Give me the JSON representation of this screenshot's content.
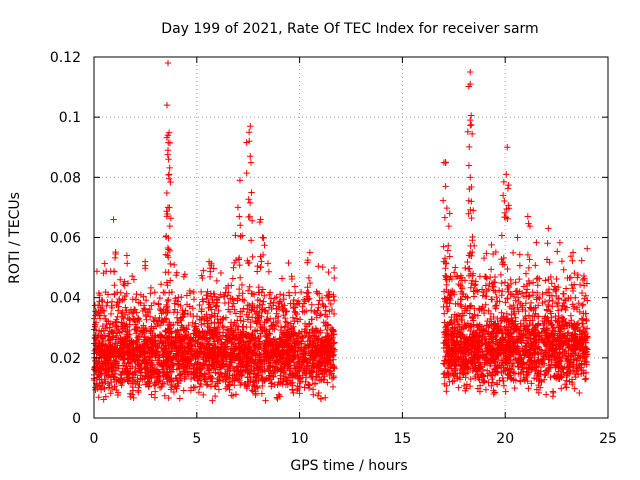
{
  "chart_data": {
    "type": "scatter",
    "title": "Day 199 of 2021, Rate Of TEC Index for receiver sarm",
    "xlabel": "GPS time / hours",
    "ylabel": "ROTI / TECUs",
    "xlim": [
      0,
      25
    ],
    "ylim": [
      0,
      0.12
    ],
    "xticks": [
      0,
      5,
      10,
      15,
      20,
      25
    ],
    "yticks": [
      0,
      0.02,
      0.04,
      0.06,
      0.08,
      0.1,
      0.12
    ],
    "xtick_labels": [
      "0",
      "5",
      "10",
      "15",
      "20",
      "25"
    ],
    "ytick_labels": [
      "0",
      "0.02",
      "0.04",
      "0.06",
      "0.08",
      "0.1",
      "0.12"
    ],
    "grid": true,
    "marker": "+",
    "color": "#ff0000",
    "series": [
      {
        "name": "ROTI",
        "segments": [
          {
            "x_start": 0.0,
            "x_end": 11.7,
            "baseline": 0.02,
            "typical_max": 0.04
          },
          {
            "x_start": 17.0,
            "x_end": 24.0,
            "baseline": 0.022,
            "typical_max": 0.045
          }
        ],
        "peaks": [
          {
            "x": 0.95,
            "y": 0.066
          },
          {
            "x": 1.6,
            "y": 0.054
          },
          {
            "x": 3.6,
            "y": 0.118
          },
          {
            "x": 3.55,
            "y": 0.104
          },
          {
            "x": 3.6,
            "y": 0.094
          },
          {
            "x": 3.6,
            "y": 0.089
          },
          {
            "x": 3.65,
            "y": 0.081
          },
          {
            "x": 3.6,
            "y": 0.07
          },
          {
            "x": 5.6,
            "y": 0.052
          },
          {
            "x": 7.1,
            "y": 0.079
          },
          {
            "x": 7.6,
            "y": 0.097
          },
          {
            "x": 7.55,
            "y": 0.092
          },
          {
            "x": 7.6,
            "y": 0.087
          },
          {
            "x": 7.0,
            "y": 0.07
          },
          {
            "x": 8.1,
            "y": 0.066
          },
          {
            "x": 8.2,
            "y": 0.06
          },
          {
            "x": 10.5,
            "y": 0.055
          },
          {
            "x": 17.1,
            "y": 0.085
          },
          {
            "x": 17.1,
            "y": 0.077
          },
          {
            "x": 17.3,
            "y": 0.068
          },
          {
            "x": 18.3,
            "y": 0.115
          },
          {
            "x": 18.3,
            "y": 0.111
          },
          {
            "x": 18.3,
            "y": 0.099
          },
          {
            "x": 18.3,
            "y": 0.08
          },
          {
            "x": 18.35,
            "y": 0.072
          },
          {
            "x": 20.1,
            "y": 0.09
          },
          {
            "x": 20.05,
            "y": 0.081
          },
          {
            "x": 19.9,
            "y": 0.074
          },
          {
            "x": 20.6,
            "y": 0.06
          },
          {
            "x": 21.1,
            "y": 0.067
          },
          {
            "x": 22.1,
            "y": 0.063
          },
          {
            "x": 23.3,
            "y": 0.055
          }
        ]
      }
    ]
  }
}
